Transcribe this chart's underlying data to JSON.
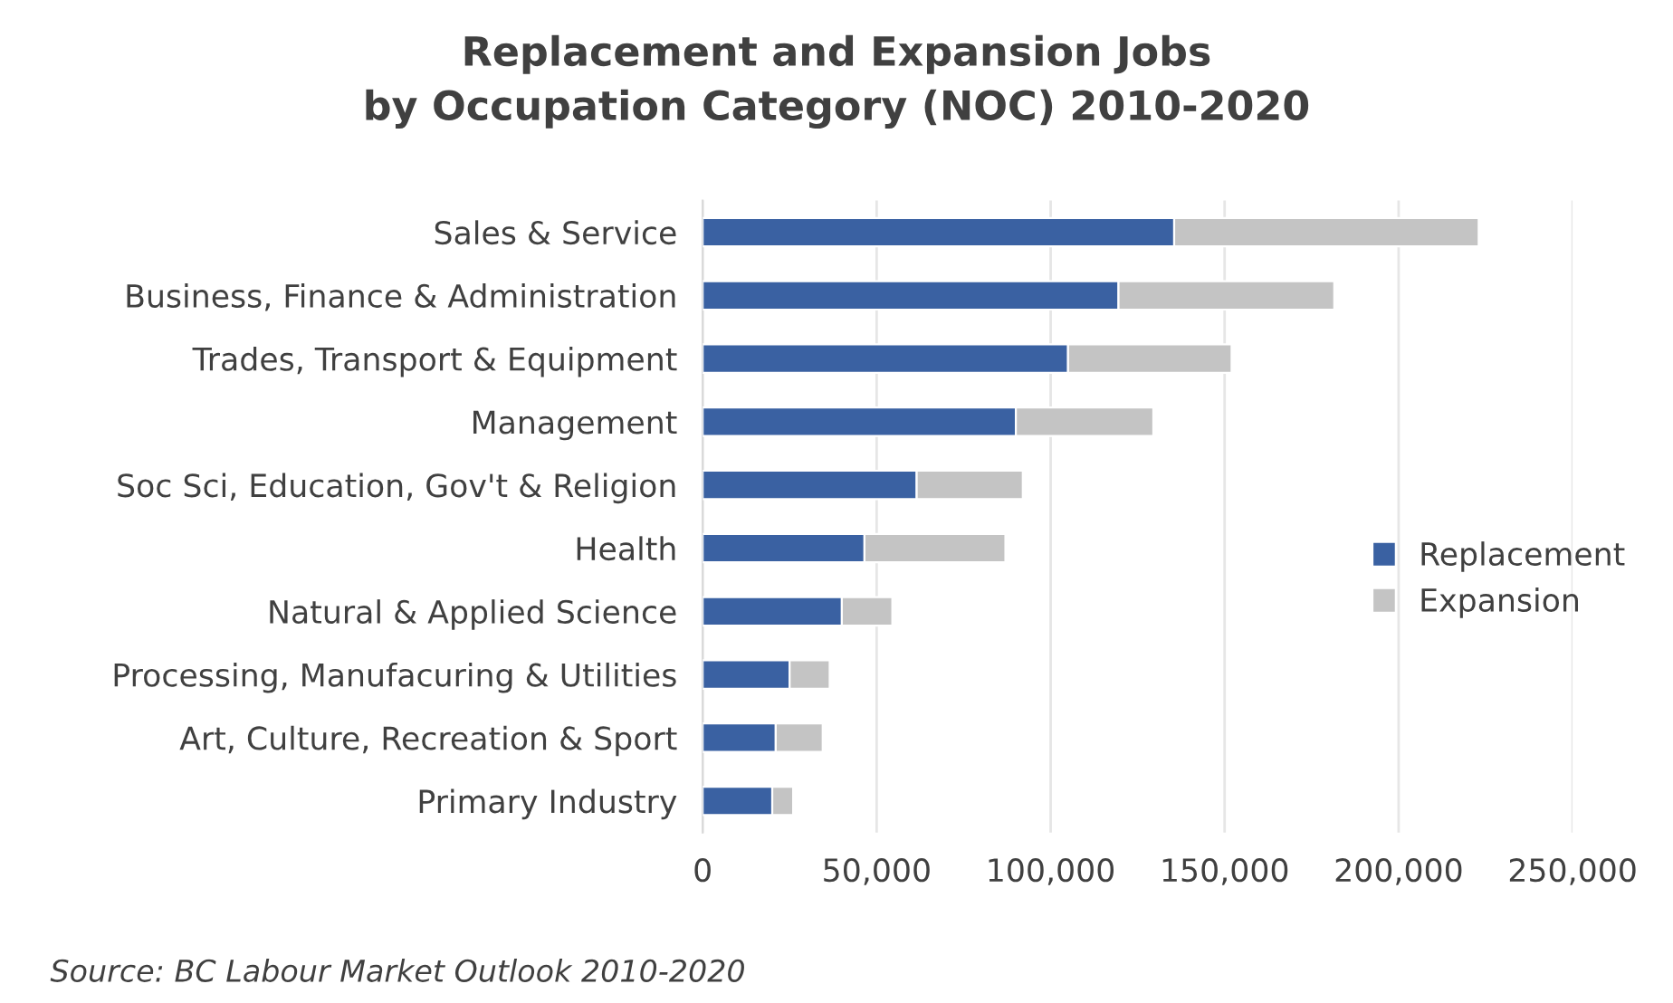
{
  "chart_data": {
    "type": "bar",
    "orientation": "horizontal",
    "stacked": true,
    "title": "Replacement and Expansion Jobs\nby Occupation Category (NOC) 2010-2020",
    "categories": [
      "Sales & Service",
      "Business, Finance & Administration",
      "Trades, Transport & Equipment",
      "Management",
      "Soc Sci, Education, Gov't & Religion",
      "Health",
      "Natural & Applied Science",
      "Processing, Manufacuring & Utilities",
      "Art, Culture, Recreation & Sport",
      "Primary Industry"
    ],
    "series": [
      {
        "name": "Replacement",
        "color": "#3a61a2",
        "values": [
          135500,
          119500,
          105000,
          90000,
          61500,
          46500,
          40000,
          25000,
          21000,
          20000
        ]
      },
      {
        "name": "Expansion",
        "color": "#c4c4c4",
        "values": [
          87500,
          62000,
          47000,
          39500,
          30500,
          40500,
          14500,
          11500,
          13500,
          6000
        ]
      }
    ],
    "xlim": [
      0,
      250000
    ],
    "xticks": [
      {
        "value": 0,
        "label": "0"
      },
      {
        "value": 50000,
        "label": "50,000"
      },
      {
        "value": 100000,
        "label": "100,000"
      },
      {
        "value": 150000,
        "label": "150,000"
      },
      {
        "value": 200000,
        "label": "200,000"
      },
      {
        "value": 250000,
        "label": "250,000"
      }
    ],
    "grid": "x",
    "legend": "right",
    "annotations": [
      "Source: BC Labour Market Outlook 2010-2020"
    ]
  }
}
